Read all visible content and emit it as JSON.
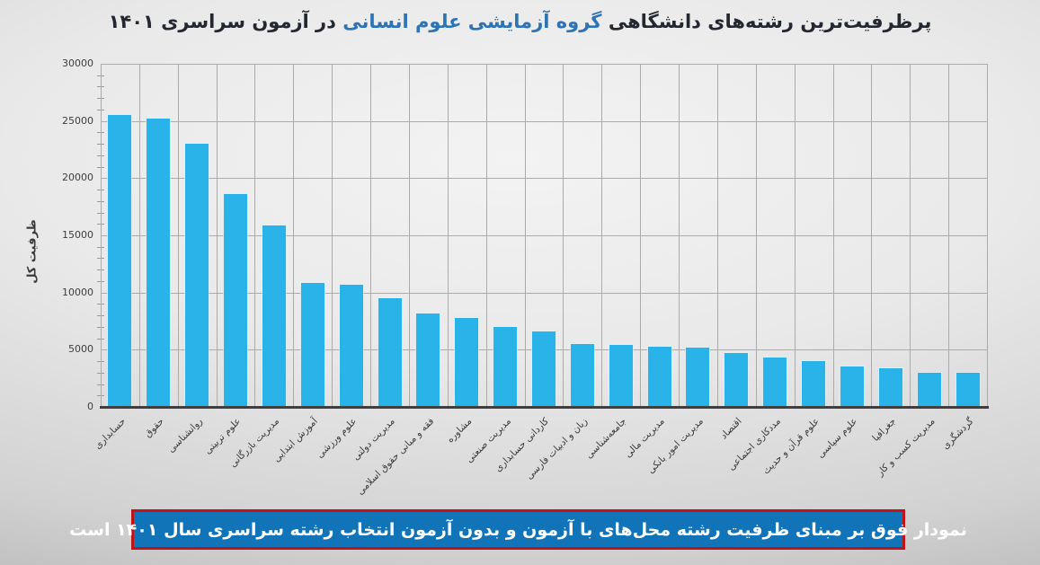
{
  "title": {
    "part1": "پرظرفیت‌ترین رشته‌های دانشگاهی ",
    "highlight": "گروه آزمایشی علوم انسانی",
    "part2": " در آزمون سراسری ۱۴۰۱"
  },
  "caption": "نمودار فوق بر مبنای ظرفیت رشته محل‌های با آزمون و بدون آزمون انتخاب رشته سراسری سال ۱۴۰۱ است",
  "colors": {
    "bar": "#2ab3e8",
    "title_highlight": "#2e74b5",
    "caption_background": "#1173b8",
    "caption_border": "#c11218",
    "gridline": "#ababab",
    "axis": "#3f3f3f"
  },
  "chart_data": {
    "type": "bar",
    "title": "پرظرفیت‌ترین رشته‌های دانشگاهی گروه آزمایشی علوم انسانی در آزمون سراسری ۱۴۰۱",
    "xlabel": "",
    "ylabel": "ظرفیت کل",
    "ylim": [
      0,
      30000
    ],
    "ytick_step": 5000,
    "yticks": [
      0,
      5000,
      10000,
      15000,
      20000,
      25000,
      30000
    ],
    "grid": "on",
    "legend": "none",
    "categories": [
      "حسابداری",
      "حقوق",
      "روانشناسی",
      "علوم تربیتی",
      "مدیریت بازرگانی",
      "آموزش ابتدایی",
      "علوم ورزشی",
      "مدیریت دولتی",
      "فقه و مبانی حقوق اسلامی",
      "مشاوره",
      "مدیریت صنعتی",
      "کاردانی حسابداری",
      "زبان و ادبیات فارسی",
      "جامعه‌شناسی",
      "مدیریت مالی",
      "مدیریت امور بانکی",
      "اقتصاد",
      "مددکاری اجتماعی",
      "علوم قرآن و حدیث",
      "علوم سیاسی",
      "جغرافیا",
      "مدیریت کسب و کار",
      "گردشگری"
    ],
    "values": [
      25500,
      25200,
      23000,
      18600,
      15900,
      10800,
      10700,
      9500,
      8150,
      7800,
      7000,
      6600,
      5500,
      5400,
      5250,
      5150,
      4700,
      4300,
      4000,
      3550,
      3400,
      3000,
      2950
    ]
  }
}
